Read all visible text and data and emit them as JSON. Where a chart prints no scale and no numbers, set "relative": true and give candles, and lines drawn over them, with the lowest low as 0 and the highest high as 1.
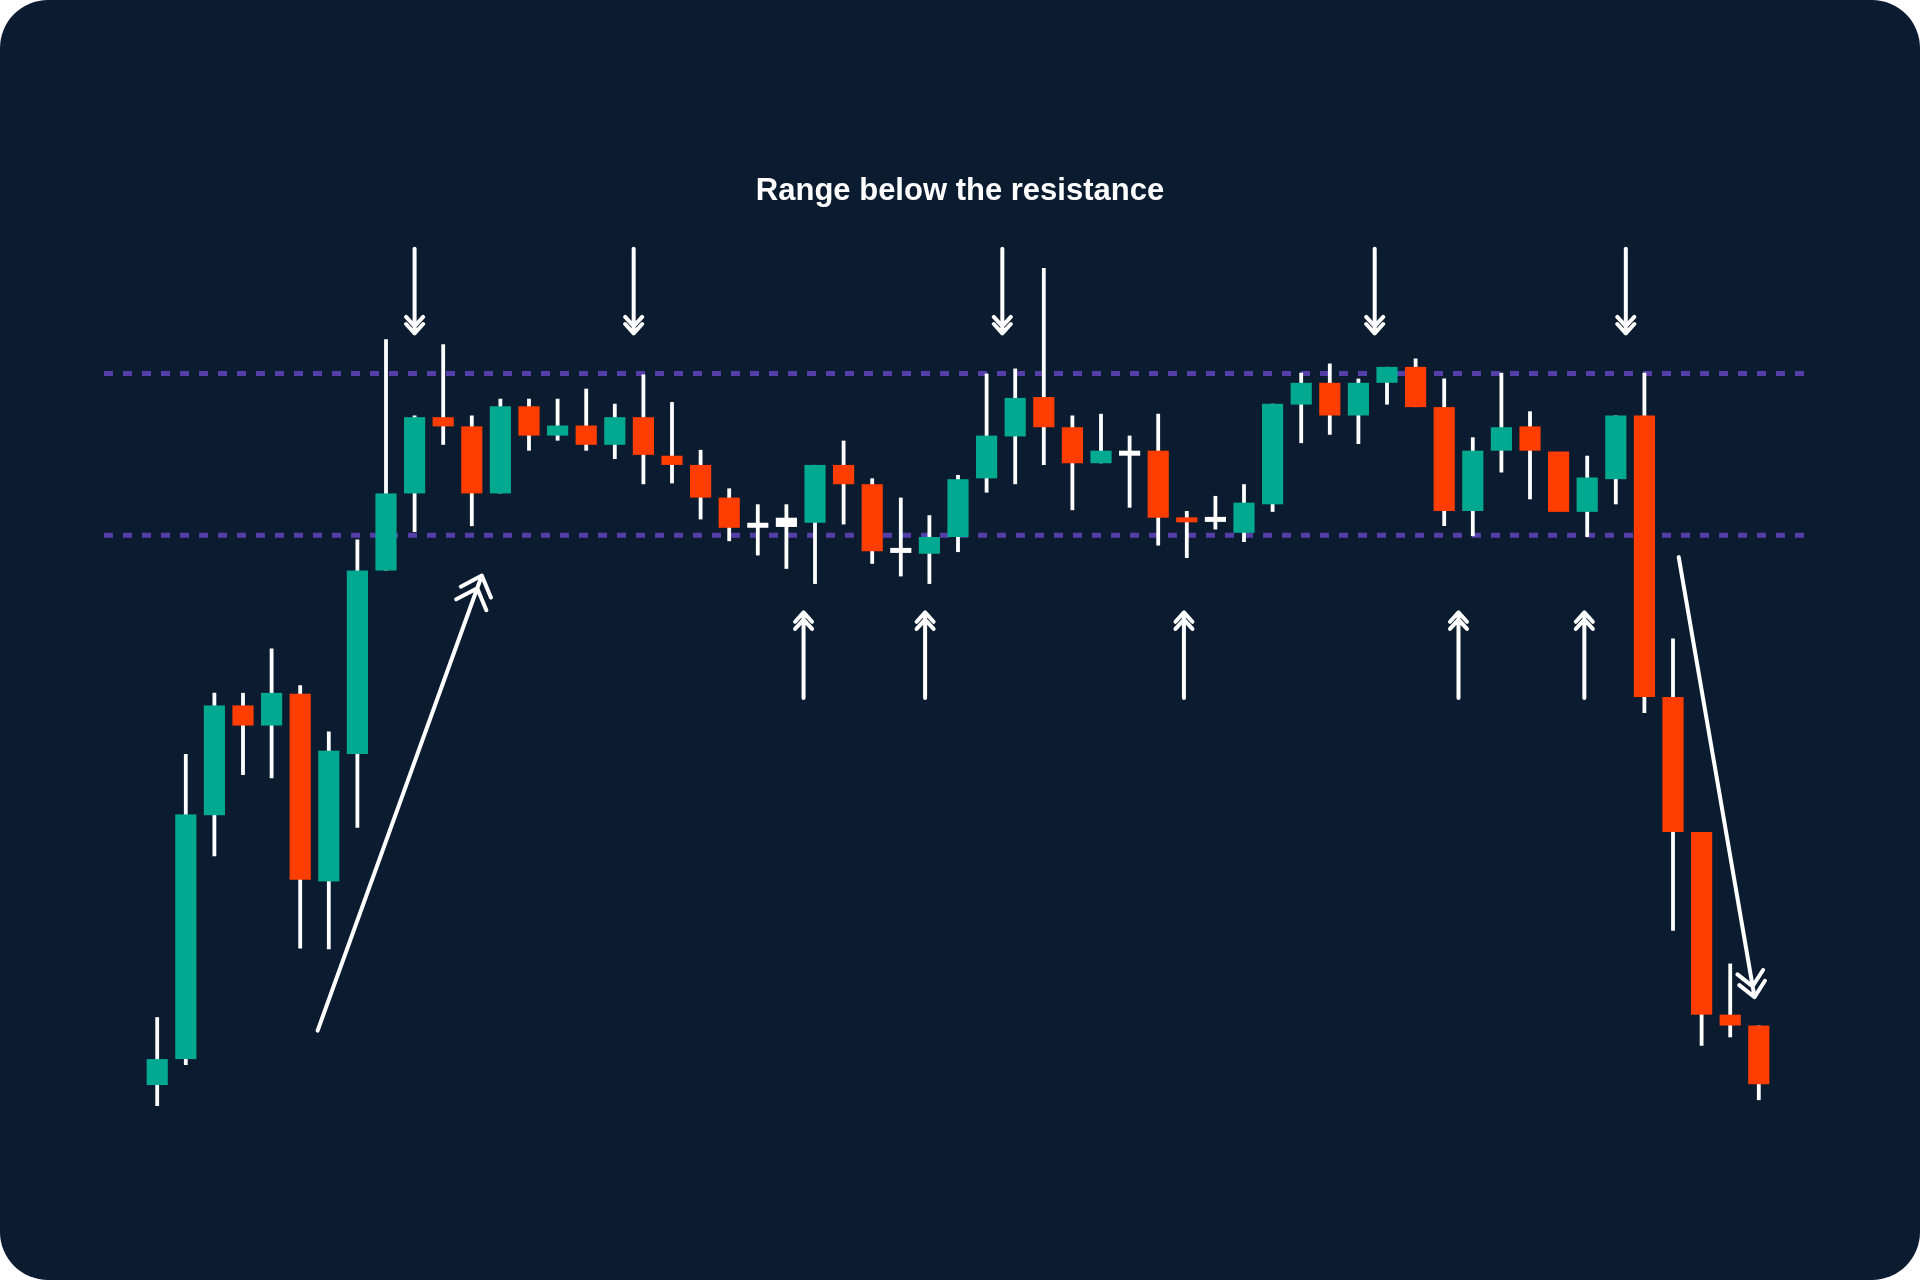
{
  "chart_data": {
    "type": "candlestick",
    "title": "Range below the resistance",
    "relative": true,
    "categories": [
      null,
      null,
      null,
      null,
      null,
      null,
      null,
      null,
      null,
      null,
      null,
      null,
      null,
      null,
      null,
      null,
      null,
      null,
      null,
      null,
      null,
      null,
      null,
      null,
      null,
      null,
      null,
      null,
      null,
      null,
      null,
      null,
      null,
      null,
      null,
      null,
      null,
      null,
      null,
      null,
      null,
      null,
      null,
      null,
      null,
      null,
      null,
      null,
      null,
      null,
      null,
      null,
      null,
      null,
      null,
      null,
      null
    ],
    "ohlc": [
      [
        0.025,
        0.106,
        0,
        0.056
      ],
      [
        0.056,
        0.42,
        0.049,
        0.348
      ],
      [
        0.347,
        0.493,
        0.298,
        0.478
      ],
      [
        0.478,
        0.493,
        0.395,
        0.454
      ],
      [
        0.454,
        0.546,
        0.391,
        0.493
      ],
      [
        0.492,
        0.502,
        0.188,
        0.27
      ],
      [
        0.268,
        0.447,
        0.187,
        0.424
      ],
      [
        0.42,
        0.676,
        0.332,
        0.639
      ],
      [
        0.639,
        0.915,
        0.639,
        0.731
      ],
      [
        0.731,
        0.824,
        0.685,
        0.822
      ],
      [
        0.822,
        0.909,
        0.789,
        0.811
      ],
      [
        0.811,
        0.824,
        0.692,
        0.731
      ],
      [
        0.731,
        0.844,
        0.731,
        0.835
      ],
      [
        0.835,
        0.844,
        0.782,
        0.8
      ],
      [
        0.8,
        0.844,
        0.794,
        0.812
      ],
      [
        0.812,
        0.856,
        0.782,
        0.789
      ],
      [
        0.789,
        0.838,
        0.772,
        0.822
      ],
      [
        0.822,
        0.873,
        0.742,
        0.777
      ],
      [
        0.776,
        0.84,
        0.743,
        0.765
      ],
      [
        0.765,
        0.783,
        0.7,
        0.726
      ],
      [
        0.726,
        0.737,
        0.674,
        0.69
      ],
      [
        0.693,
        0.718,
        0.657,
        0.693
      ],
      [
        0.691,
        0.718,
        0.641,
        0.702
      ],
      [
        0.696,
        0.765,
        0.623,
        0.765
      ],
      [
        0.765,
        0.794,
        0.694,
        0.742
      ],
      [
        0.742,
        0.749,
        0.647,
        0.662
      ],
      [
        0.663,
        0.726,
        0.632,
        0.663
      ],
      [
        0.659,
        0.705,
        0.623,
        0.679
      ],
      [
        0.679,
        0.753,
        0.661,
        0.748
      ],
      [
        0.749,
        0.874,
        0.732,
        0.8
      ],
      [
        0.799,
        0.88,
        0.742,
        0.845
      ],
      [
        0.846,
        1,
        0.765,
        0.81
      ],
      [
        0.81,
        0.824,
        0.711,
        0.767
      ],
      [
        0.767,
        0.826,
        0.767,
        0.782
      ],
      [
        0.779,
        0.8,
        0.714,
        0.779
      ],
      [
        0.782,
        0.826,
        0.669,
        0.702
      ],
      [
        0.702,
        0.71,
        0.654,
        0.697
      ],
      [
        0.7,
        0.728,
        0.688,
        0.7
      ],
      [
        0.684,
        0.742,
        0.673,
        0.72
      ],
      [
        0.718,
        0.838,
        0.709,
        0.838
      ],
      [
        0.837,
        0.875,
        0.791,
        0.863
      ],
      [
        0.863,
        0.886,
        0.801,
        0.824
      ],
      [
        0.824,
        0.868,
        0.79,
        0.863
      ],
      [
        0.863,
        0.882,
        0.837,
        0.882
      ],
      [
        0.882,
        0.892,
        0.834,
        0.834
      ],
      [
        0.834,
        0.868,
        0.692,
        0.71
      ],
      [
        0.71,
        0.798,
        0.68,
        0.782
      ],
      [
        0.782,
        0.875,
        0.756,
        0.81
      ],
      [
        0.811,
        0.829,
        0.724,
        0.782
      ],
      [
        0.781,
        0.781,
        0.709,
        0.709
      ],
      [
        0.709,
        0.776,
        0.679,
        0.75
      ],
      [
        0.748,
        0.824,
        0.718,
        0.824
      ],
      [
        0.824,
        0.875,
        0.469,
        0.488
      ],
      [
        0.488,
        0.558,
        0.209,
        0.327
      ],
      [
        0.327,
        0.327,
        0.072,
        0.109
      ],
      [
        0.109,
        0.17,
        0.082,
        0.096
      ],
      [
        0.096,
        0.096,
        0.007,
        0.026
      ]
    ],
    "colors": [
      "#00a98f",
      "#00a98f",
      "#00a98f",
      "#ff3d00",
      "#00a98f",
      "#ff3d00",
      "#00a98f",
      "#00a98f",
      "#00a98f",
      "#00a98f",
      "#ff3d00",
      "#ff3d00",
      "#00a98f",
      "#ff3d00",
      "#00a98f",
      "#ff3d00",
      "#00a98f",
      "#ff3d00",
      "#ff3d00",
      "#ff3d00",
      "#ff3d00",
      "#ffffff",
      "#ffffff",
      "#00a98f",
      "#ff3d00",
      "#ff3d00",
      "#ffffff",
      "#00a98f",
      "#00a98f",
      "#00a98f",
      "#00a98f",
      "#ff3d00",
      "#ff3d00",
      "#00a98f",
      "#ffffff",
      "#ff3d00",
      "#ff3d00",
      "#ffffff",
      "#00a98f",
      "#00a98f",
      "#00a98f",
      "#ff3d00",
      "#00a98f",
      "#00a98f",
      "#ff3d00",
      "#ff3d00",
      "#00a98f",
      "#00a98f",
      "#ff3d00",
      "#ff3d00",
      "#00a98f",
      "#00a98f",
      "#ff3d00",
      "#ff3d00",
      "#ff3d00",
      "#ff3d00",
      "#ff3d00"
    ],
    "ref_lines": [
      {
        "axis": "y",
        "value": 0.874,
        "color": "#553ea8",
        "line_style": "dashed"
      },
      {
        "axis": "y",
        "value": 0.681,
        "color": "#553ea8",
        "line_style": "dashed"
      }
    ]
  }
}
